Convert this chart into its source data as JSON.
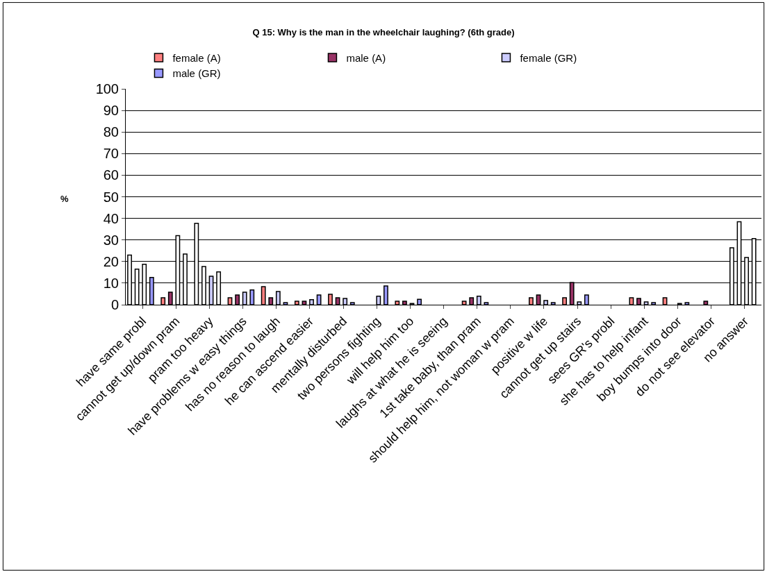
{
  "chart_data": {
    "type": "bar",
    "title": "Q 15: Why is the man in the wheelchair laughing? (6th grade)",
    "ylabel": "%",
    "categories": [
      "have same probl",
      "cannot get up/down pram",
      "pram too heavy",
      "have problems w easy things",
      "has no reason to laugh",
      "he can ascend easier",
      "mentally disturbed",
      "two persons fighting",
      "will help him too",
      "laughs at what he is seeing",
      "1st take baby, than pram",
      "should help him, not woman w pram",
      "positive w life",
      "cannot get up stairs",
      "sees GR's probl",
      "she has to help infant",
      "boy bumps into door",
      "do not see elevator",
      "no answer"
    ],
    "series": [
      {
        "name": "female (A)",
        "color": "#ff8080",
        "colors": [
          "#ffffff",
          "#ff8080",
          "#ffffff",
          "#ff8080",
          "#ff8080",
          "#ff8080",
          "#ff8080",
          "#ff8080",
          "#ff8080",
          "#ff8080",
          "#ff8080",
          "#ff8080",
          "#ff8080",
          "#ff8080",
          "#ff8080",
          "#ff8080",
          "#ff8080",
          "#ff8080",
          "#ffffff"
        ],
        "values": [
          23,
          3.2,
          37.7,
          3.2,
          8.4,
          1.6,
          4.8,
          0,
          1.6,
          0,
          1.6,
          0,
          3.2,
          3.2,
          0,
          3.2,
          3.2,
          0,
          26.4
        ]
      },
      {
        "name": "male (A)",
        "color": "#993366",
        "colors": [
          "#ffffff",
          "#993366",
          "#ffffff",
          "#993366",
          "#993366",
          "#993366",
          "#993366",
          "#993366",
          "#993366",
          "#993366",
          "#993366",
          "#993366",
          "#993366",
          "#993366",
          "#993366",
          "#993366",
          "#993366",
          "#993366",
          "#ffffff"
        ],
        "values": [
          16.5,
          5.8,
          17.7,
          4.5,
          3.2,
          1.6,
          3.2,
          0,
          1.6,
          0,
          3.2,
          0,
          4.5,
          10.3,
          0,
          2.9,
          0,
          1.6,
          38.4
        ]
      },
      {
        "name": "female (GR)",
        "color": "#ccccff",
        "colors": [
          "#ffffff",
          "#ffffff",
          "#ccccff",
          "#ccccff",
          "#ccccff",
          "#ccccff",
          "#ccccff",
          "#ccccff",
          "#ccccff",
          "#ccccff",
          "#ccccff",
          "#ccccff",
          "#ccccff",
          "#ccccff",
          "#ccccff",
          "#ccccff",
          "#ccccff",
          "#ccccff",
          "#ffffff"
        ],
        "values": [
          18.7,
          32,
          13.2,
          5.8,
          6.1,
          2.3,
          2.9,
          3.9,
          0.6,
          0,
          3.9,
          0,
          1.9,
          1.3,
          0,
          1.3,
          0.6,
          0,
          21.9
        ]
      },
      {
        "name": "male (GR)",
        "color": "#9999ff",
        "colors": [
          "#9999ff",
          "#ffffff",
          "#ffffff",
          "#9999ff",
          "#9999ff",
          "#9999ff",
          "#9999ff",
          "#9999ff",
          "#9999ff",
          "#9999ff",
          "#9999ff",
          "#9999ff",
          "#9999ff",
          "#9999ff",
          "#9999ff",
          "#9999ff",
          "#9999ff",
          "#9999ff",
          "#ffffff"
        ],
        "values": [
          12.6,
          23.5,
          15.2,
          6.8,
          1,
          4.5,
          1,
          8.7,
          2.5,
          0,
          1,
          0,
          1,
          4.5,
          0,
          1,
          1,
          0,
          30.6
        ]
      }
    ],
    "ylim": [
      0,
      100
    ],
    "yticks": [
      0,
      10,
      20,
      30,
      40,
      50,
      60,
      70,
      80,
      90,
      100
    ],
    "grid": "y",
    "legend": "top"
  }
}
